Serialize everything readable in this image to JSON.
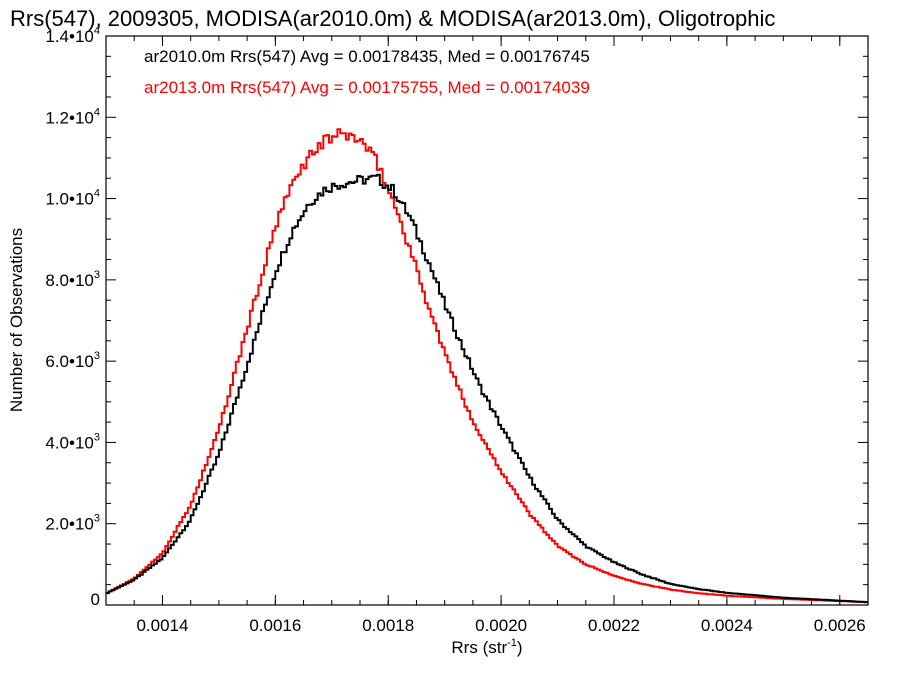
{
  "chart_data": {
    "type": "histogram",
    "title": "Rrs(547), 2009305, MODISA(ar2010.0m) & MODISA(ar2013.0m), Oligotrophic",
    "xlabel": "Rrs (str",
    "xlabel_sup": "-1",
    "xlabel_end": ")",
    "ylabel": "Number of Observations",
    "xlim": [
      0.0013,
      0.00265
    ],
    "ylim": [
      0,
      14000
    ],
    "x_ticks": [
      {
        "value": 0.0014,
        "label": "0.0014"
      },
      {
        "value": 0.0016,
        "label": "0.0016"
      },
      {
        "value": 0.0018,
        "label": "0.0018"
      },
      {
        "value": 0.002,
        "label": "0.0020"
      },
      {
        "value": 0.0022,
        "label": "0.0022"
      },
      {
        "value": 0.0024,
        "label": "0.0024"
      },
      {
        "value": 0.0026,
        "label": "0.0026"
      }
    ],
    "y_ticks": [
      {
        "value": 0,
        "mant": "0",
        "exp": ""
      },
      {
        "value": 2000,
        "mant": "2.0•10",
        "exp": "3"
      },
      {
        "value": 4000,
        "mant": "4.0•10",
        "exp": "3"
      },
      {
        "value": 6000,
        "mant": "6.0•10",
        "exp": "3"
      },
      {
        "value": 8000,
        "mant": "8.0•10",
        "exp": "3"
      },
      {
        "value": 10000,
        "mant": "1.0•10",
        "exp": "4"
      },
      {
        "value": 12000,
        "mant": "1.2•10",
        "exp": "4"
      },
      {
        "value": 14000,
        "mant": "1.4•10",
        "exp": "4"
      }
    ],
    "series": [
      {
        "name": "ar2010.0m",
        "legend": "ar2010.0m Rrs(547) Avg = 0.00178435, Med = 0.00176745",
        "color": "#000000",
        "x": [
          0.0013,
          0.00135,
          0.0014,
          0.00145,
          0.0015,
          0.00155,
          0.0016,
          0.00163,
          0.00166,
          0.00169,
          0.00172,
          0.00175,
          0.00178,
          0.00181,
          0.00184,
          0.00187,
          0.0019,
          0.00193,
          0.00196,
          0.002,
          0.00205,
          0.0021,
          0.00215,
          0.0022,
          0.00225,
          0.0023,
          0.00235,
          0.0024,
          0.0025,
          0.00265
        ],
        "y": [
          280,
          620,
          1150,
          2100,
          3700,
          5900,
          8200,
          9200,
          9900,
          10250,
          10380,
          10450,
          10500,
          10200,
          9500,
          8500,
          7400,
          6400,
          5450,
          4400,
          3150,
          2100,
          1450,
          1050,
          750,
          520,
          390,
          300,
          180,
          70
        ]
      },
      {
        "name": "ar2013.0m",
        "legend": "ar2013.0m Rrs(547) Avg = 0.00175755, Med = 0.00174039",
        "color": "#ff0000",
        "x": [
          0.0013,
          0.00135,
          0.0014,
          0.00145,
          0.0015,
          0.00155,
          0.0016,
          0.00163,
          0.00166,
          0.00169,
          0.00172,
          0.00175,
          0.00178,
          0.00181,
          0.00184,
          0.00187,
          0.0019,
          0.00193,
          0.00196,
          0.002,
          0.00205,
          0.0021,
          0.00215,
          0.0022,
          0.00225,
          0.0023,
          0.00235,
          0.0024,
          0.0025,
          0.00265
        ],
        "y": [
          280,
          650,
          1280,
          2450,
          4300,
          6800,
          9300,
          10350,
          11050,
          11450,
          11600,
          11450,
          10900,
          9900,
          8700,
          7400,
          6200,
          5150,
          4250,
          3300,
          2250,
          1450,
          1000,
          720,
          520,
          380,
          290,
          230,
          150,
          70
        ]
      }
    ]
  }
}
